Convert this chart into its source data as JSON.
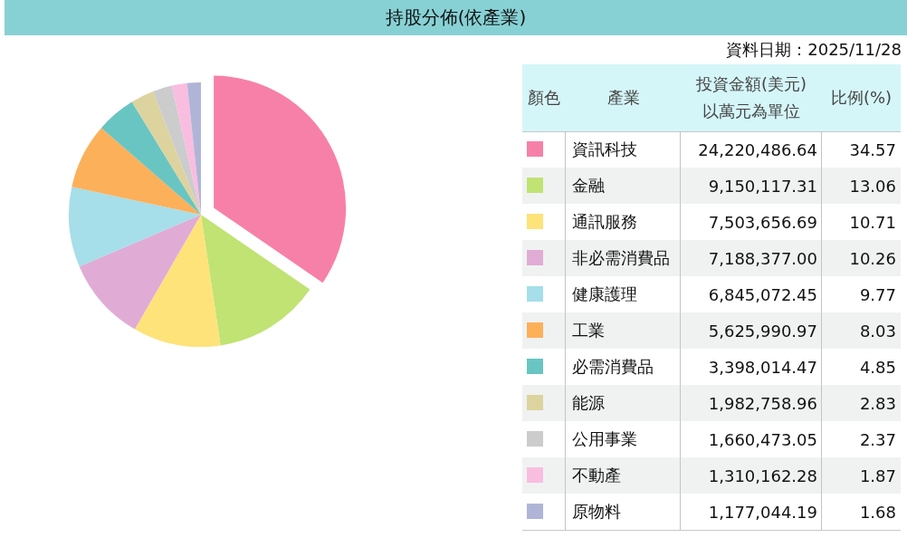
{
  "chart_data": [
    {
      "type": "pie",
      "title": "持股分佈(依產業)",
      "annotations": [
        "資料日期：2025/11/28",
        "顏色",
        "投資金額(美元)\n以萬元為單位"
      ],
      "legend_title": "產業",
      "categories": [
        "資訊科技",
        "金融",
        "通訊服務",
        "非必需消費品",
        "健康護理",
        "工業",
        "必需消費品",
        "能源",
        "公用事業",
        "不動產",
        "原物料"
      ],
      "values": [
        24220486.64,
        9150117.31,
        7503656.69,
        7188377.0,
        6845072.45,
        5625990.97,
        3398014.47,
        1982758.96,
        1660473.05,
        1310162.28,
        1177044.19
      ],
      "value_labels": [
        "24,220,486.64",
        "9,150,117.31",
        "7,503,656.69",
        "7,188,377.00",
        "6,845,072.45",
        "5,625,990.97",
        "3,398,014.47",
        "1,982,758.96",
        "1,660,473.05",
        "1,310,162.28",
        "1,177,044.19"
      ],
      "colors": [
        "#f780a8",
        "#c0e373",
        "#fde37a",
        "#e0acd5",
        "#a6deea",
        "#fcb05a",
        "#69c5c2",
        "#ddd39e",
        "#cccccc",
        "#f9bde0",
        "#b0b5d7"
      ],
      "legend": "right"
    },
    {
      "type": "other",
      "title": "比例(%)",
      "annotations": [
        "34.57",
        "13.06",
        "10.71",
        "10.26",
        "9.77",
        "8.03",
        "4.85",
        "2.83",
        "2.37",
        "1.87",
        "1.68"
      ]
    }
  ]
}
